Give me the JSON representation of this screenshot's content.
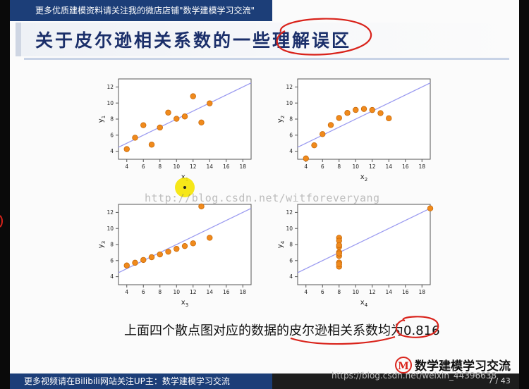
{
  "header": {
    "banner_text": "更多优质建模资料请关注我的微店店铺\"数学建模学习交流\"",
    "title": "关于皮尔逊相关系数的一些理解误区"
  },
  "chart_data": [
    {
      "type": "scatter",
      "xlabel": "x1",
      "ylabel": "y1",
      "xlim": [
        3,
        19
      ],
      "ylim": [
        3,
        13
      ],
      "xticks": [
        4,
        6,
        8,
        10,
        12,
        14,
        16,
        18
      ],
      "yticks": [
        4,
        6,
        8,
        10,
        12
      ],
      "x": [
        10,
        8,
        13,
        9,
        11,
        14,
        6,
        4,
        12,
        7,
        5
      ],
      "y": [
        8.04,
        6.95,
        7.58,
        8.81,
        8.33,
        9.96,
        7.24,
        4.26,
        10.84,
        4.82,
        5.68
      ],
      "fit": [
        3,
        0.5
      ],
      "grid": false
    },
    {
      "type": "scatter",
      "xlabel": "x2",
      "ylabel": "y2",
      "xlim": [
        3,
        19
      ],
      "ylim": [
        3,
        13
      ],
      "xticks": [
        4,
        6,
        8,
        10,
        12,
        14,
        16,
        18
      ],
      "yticks": [
        4,
        6,
        8,
        10,
        12
      ],
      "x": [
        10,
        8,
        13,
        9,
        11,
        14,
        6,
        4,
        12,
        7,
        5
      ],
      "y": [
        9.14,
        8.14,
        8.74,
        8.77,
        9.26,
        8.1,
        6.13,
        3.1,
        9.13,
        7.26,
        4.74
      ],
      "fit": [
        3,
        0.5
      ],
      "grid": false
    },
    {
      "type": "scatter",
      "xlabel": "x3",
      "ylabel": "y3",
      "xlim": [
        3,
        19
      ],
      "ylim": [
        3,
        13
      ],
      "xticks": [
        4,
        6,
        8,
        10,
        12,
        14,
        16,
        18
      ],
      "yticks": [
        4,
        6,
        8,
        10,
        12
      ],
      "x": [
        10,
        8,
        13,
        9,
        11,
        14,
        6,
        4,
        12,
        7,
        5
      ],
      "y": [
        7.46,
        6.77,
        12.74,
        7.11,
        7.81,
        8.84,
        6.08,
        5.39,
        8.15,
        6.42,
        5.73
      ],
      "fit": [
        3,
        0.5
      ],
      "grid": false
    },
    {
      "type": "scatter",
      "xlabel": "x4",
      "ylabel": "y4",
      "xlim": [
        3,
        19
      ],
      "ylim": [
        3,
        13
      ],
      "xticks": [
        4,
        6,
        8,
        10,
        12,
        14,
        16,
        18
      ],
      "yticks": [
        4,
        6,
        8,
        10,
        12
      ],
      "x": [
        8,
        8,
        8,
        8,
        8,
        8,
        8,
        19,
        8,
        8,
        8
      ],
      "y": [
        6.58,
        5.76,
        7.71,
        8.84,
        8.47,
        7.04,
        5.25,
        12.5,
        5.56,
        7.91,
        6.89
      ],
      "fit": [
        3,
        0.5
      ],
      "grid": false
    }
  ],
  "style": {
    "point_color": "#f08a1c",
    "point_edge": "#c96a0a",
    "fit_color": "#9a9af0",
    "highlight_color": "#f5e400",
    "annotation_color": "#d9231b",
    "banner_color": "#1c3e78"
  },
  "caption": {
    "text": "上面四个散点图对应的数据的皮尔逊相关系数均为",
    "value": "0.816"
  },
  "logo": {
    "mark": "M",
    "text": "数学建模学习交流"
  },
  "footer": {
    "banner_text": "更多视频请在Bilibili网站关注UP主：数学建模学习交流",
    "page": "7 / 43"
  },
  "watermarks": {
    "blog": "http://blog.csdn.net/witforeveryang",
    "url": "https://blog.csdn.net/weixin_44396638"
  }
}
